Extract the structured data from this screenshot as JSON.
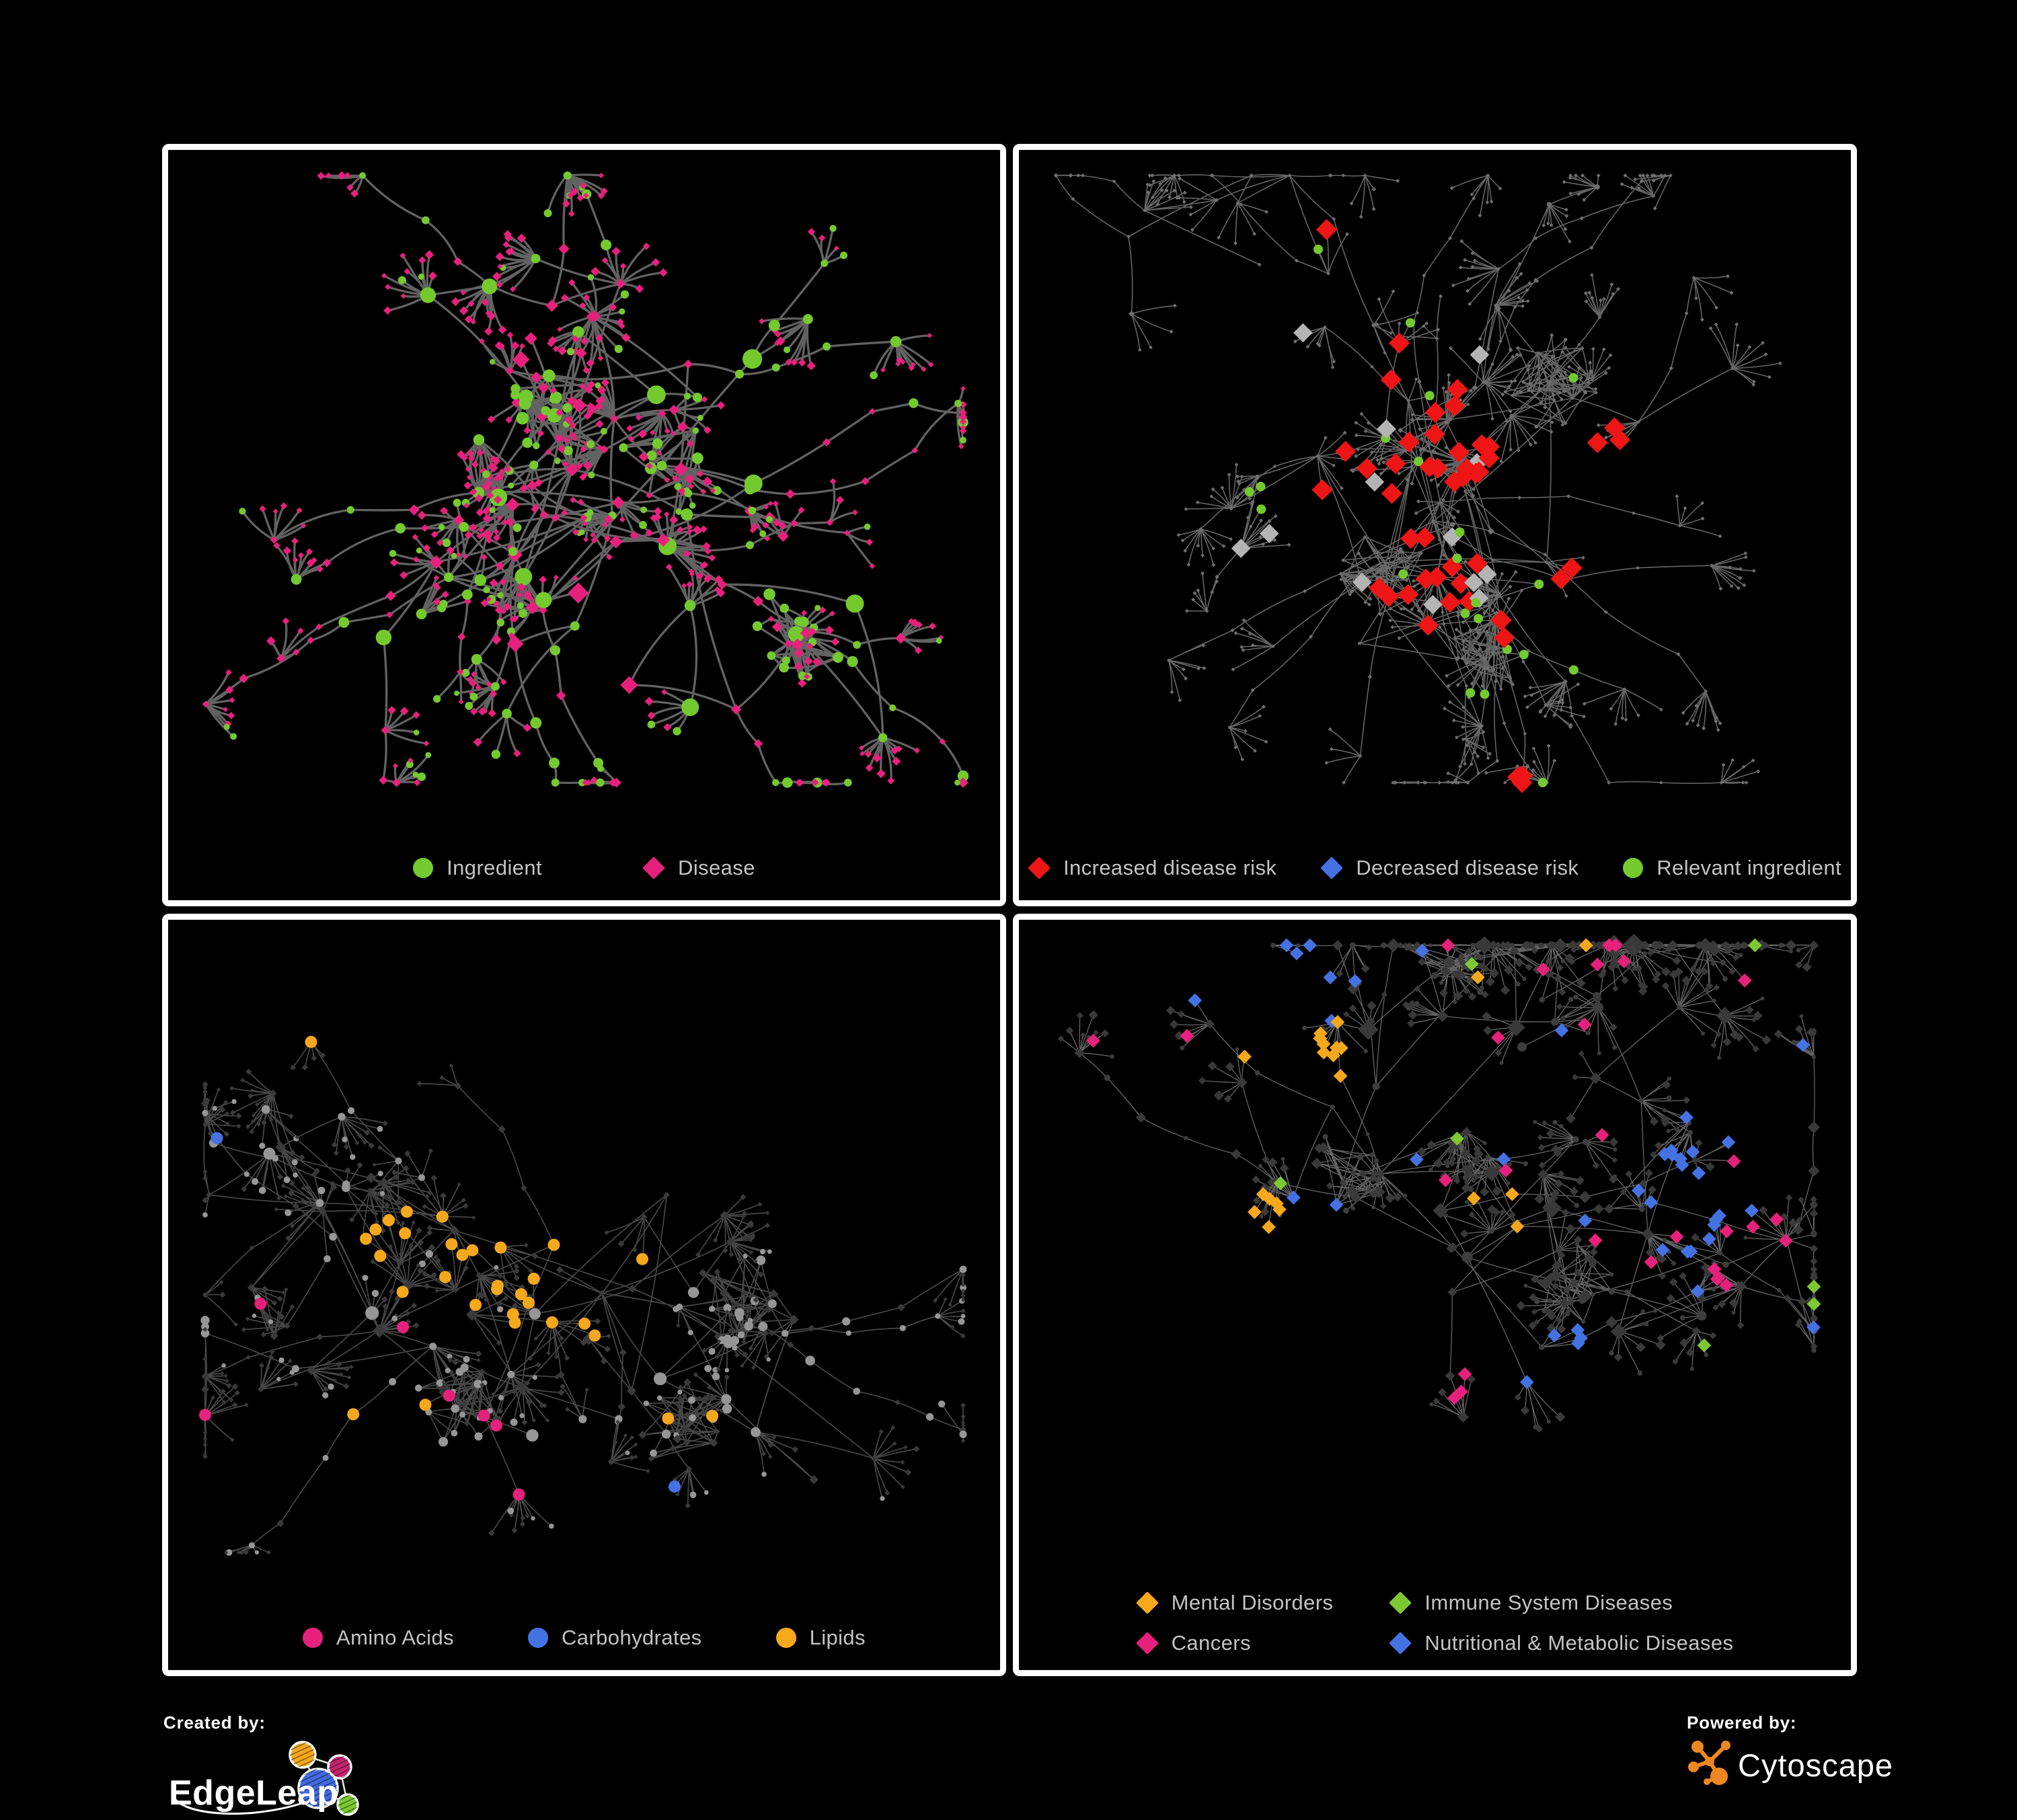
{
  "background": "#000000",
  "panel_border_color": "#ffffff",
  "legend_text_color": "#c3c3c3",
  "panels": [
    {
      "name": "ingredient-disease-network",
      "legend": [
        {
          "label": "Ingredient",
          "shape": "circle",
          "color": "#74C92F"
        },
        {
          "label": "Disease",
          "shape": "diamond",
          "color": "#E6217C"
        }
      ],
      "style": {
        "edge": "#676767",
        "edge_w": 3.3,
        "edge_o": 0.95,
        "curve": 0.14,
        "circle": "#74C92F",
        "diamond": "#E6217C",
        "circle_scale": 1.25,
        "diamond_scale": 0.95,
        "min": 3,
        "highlights": []
      }
    },
    {
      "name": "disease-risk-network",
      "legend": [
        {
          "label": "Increased disease risk",
          "shape": "diamond",
          "color": "#ED1515"
        },
        {
          "label": "Decreased disease risk",
          "shape": "diamond",
          "color": "#4472E3"
        },
        {
          "label": "Relevant ingredient",
          "shape": "circle",
          "color": "#74C92F"
        }
      ],
      "style": {
        "edge": "#7d7d7d",
        "edge_w": 1.6,
        "edge_o": 0.8,
        "curve": 0.06,
        "circle": "#6f6f6f",
        "diamond": "#6f6f6f",
        "circle_scale": 0.4,
        "diamond_scale": 0.36,
        "min": 2.3,
        "highlights": [
          {
            "shape": "d",
            "color": "#ED1515",
            "size": 12,
            "p": 0.3,
            "scatter": 0.006,
            "clusters": [
              [
                0.42,
                0.4,
                0.15
              ],
              [
                0.55,
                0.54,
                0.12
              ],
              [
                0.73,
                0.42,
                0.06
              ],
              [
                0.6,
                0.89,
                0.06
              ],
              [
                0.38,
                0.12,
                0.05
              ]
            ]
          },
          {
            "shape": "d",
            "color": "#4472E3",
            "size": 11,
            "p": 0.55,
            "scatter": 0,
            "clusters": [
              [
                0.32,
                0.32,
                0.055
              ],
              [
                0.84,
                0.34,
                0.045
              ]
            ]
          },
          {
            "shape": "d",
            "color": "#B4B4B4",
            "size": 11,
            "p": 0.05,
            "scatter": 0.002,
            "clusters": [
              [
                0.44,
                0.44,
                0.22
              ]
            ]
          },
          {
            "shape": "c",
            "color": "#74C92F",
            "size": 7,
            "p": 0.22,
            "scatter": 0.009,
            "clusters": [
              [
                0.34,
                0.31,
                0.18
              ],
              [
                0.58,
                0.6,
                0.13
              ]
            ]
          }
        ]
      }
    },
    {
      "name": "nutrient-class-network",
      "legend": [
        {
          "label": "Amino Acids",
          "shape": "circle",
          "color": "#E6217C"
        },
        {
          "label": "Carbohydrates",
          "shape": "circle",
          "color": "#4472E3"
        },
        {
          "label": "Lipids",
          "shape": "circle",
          "color": "#F5A81C"
        }
      ],
      "style": {
        "edge": "#777777",
        "edge_w": 1.7,
        "edge_o": 0.6,
        "curve": 0.05,
        "circle": "#969696",
        "diamond": "#3a3a3a",
        "circle_scale": 1.0,
        "diamond_scale": 0.7,
        "min": 2.5,
        "highlights": [
          {
            "shape": "c",
            "color": "#F5A81C",
            "size": 9,
            "p": 0.6,
            "scatter": 0.024,
            "clusters": [
              [
                0.45,
                0.25,
                0.16
              ],
              [
                0.47,
                0.5,
                0.12
              ],
              [
                0.3,
                0.44,
                0.08
              ]
            ]
          },
          {
            "shape": "c",
            "color": "#4472E3",
            "size": 9,
            "p": 0.22,
            "scatter": 0.008,
            "clusters": [
              [
                0.43,
                0.24,
                0.11
              ]
            ]
          },
          {
            "shape": "c",
            "color": "#E6217C",
            "size": 9,
            "p": 0.14,
            "scatter": 0.035,
            "clusters": [
              [
                0.35,
                0.75,
                0.12
              ]
            ]
          }
        ]
      }
    },
    {
      "name": "disease-class-network",
      "legend": [
        {
          "label": "Mental Disorders",
          "shape": "diamond",
          "color": "#F5A81C"
        },
        {
          "label": "Immune System Diseases",
          "shape": "diamond",
          "color": "#7DC832"
        },
        {
          "label": "Cancers",
          "shape": "diamond",
          "color": "#E6217C"
        },
        {
          "label": "Nutritional & Metabolic Diseases",
          "shape": "diamond",
          "color": "#4472E3"
        }
      ],
      "style": {
        "edge": "#8c8c8c",
        "edge_w": 1.35,
        "edge_o": 0.7,
        "curve": 0.05,
        "circle": "#3d3d3d",
        "diamond": "#393939",
        "circle_scale": 0.7,
        "diamond_scale": 1.05,
        "min": 3,
        "highlights": [
          {
            "shape": "d",
            "color": "#F5A81C",
            "size": 8,
            "p": 0.8,
            "scatter": 0.014,
            "clusters": [
              [
                0.27,
                0.52,
                0.16
              ],
              [
                0.34,
                0.18,
                0.07
              ]
            ]
          },
          {
            "shape": "d",
            "color": "#E6217C",
            "size": 8,
            "p": 0.55,
            "scatter": 0.02,
            "clusters": [
              [
                0.44,
                0.55,
                0.13
              ],
              [
                0.88,
                0.45,
                0.05
              ]
            ]
          },
          {
            "shape": "d",
            "color": "#4472E3",
            "size": 8,
            "p": 0.5,
            "scatter": 0.03,
            "clusters": [
              [
                0.82,
                0.36,
                0.1
              ],
              [
                0.66,
                0.62,
                0.07
              ],
              [
                0.3,
                0.1,
                0.09
              ],
              [
                0.55,
                0.85,
                0.08
              ]
            ]
          },
          {
            "shape": "d",
            "color": "#7DC832",
            "size": 8,
            "p": 0,
            "scatter": 0.012,
            "clusters": []
          }
        ]
      }
    }
  ],
  "footer": {
    "created_by_label": "Created by:",
    "edgeleap_brand": "EdgeLeap",
    "powered_by_label": "Powered by:",
    "cytoscape_brand": "Cytoscape",
    "cytoscape_color": "#EE8722",
    "edgeleap_colors": {
      "blue": "#4169E1",
      "orange": "#F5A81C",
      "magenta": "#C4256E",
      "green": "#7DC832"
    }
  }
}
